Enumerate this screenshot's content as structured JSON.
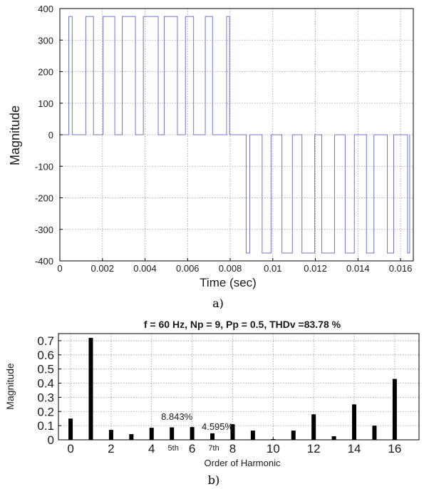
{
  "chart_data": [
    {
      "type": "line",
      "panel_label": "a)",
      "title": "",
      "xlabel": "Time (sec)",
      "ylabel": "Magnitude",
      "xlim": [
        0,
        0.0166
      ],
      "ylim": [
        -400,
        400
      ],
      "xticks": [
        0,
        0.002,
        0.004,
        0.006,
        0.008,
        0.01,
        0.012,
        0.014,
        0.016
      ],
      "xtick_labels": [
        "0",
        "0.002",
        "0.004",
        "0.006",
        "0.008",
        "0.01",
        "0.012",
        "0.014",
        "0.016"
      ],
      "yticks": [
        -400,
        -300,
        -200,
        -100,
        0,
        100,
        200,
        300,
        400
      ],
      "ytick_labels": [
        "-400",
        "-300",
        "-200",
        "-100",
        "0",
        "100",
        "200",
        "300",
        "400"
      ],
      "grid": true,
      "line_color": "#6f76c4",
      "amplitude": 375,
      "pulses": [
        {
          "start": 0.00042,
          "end": 0.00058,
          "value": 375
        },
        {
          "start": 0.00122,
          "end": 0.00158,
          "value": 375
        },
        {
          "start": 0.00203,
          "end": 0.00258,
          "value": 375
        },
        {
          "start": 0.00293,
          "end": 0.00355,
          "value": 375
        },
        {
          "start": 0.00392,
          "end": 0.00462,
          "value": 375
        },
        {
          "start": 0.0049,
          "end": 0.00552,
          "value": 375
        },
        {
          "start": 0.0059,
          "end": 0.00628,
          "value": 375
        },
        {
          "start": 0.00683,
          "end": 0.00717,
          "value": 375
        },
        {
          "start": 0.00783,
          "end": 0.00797,
          "value": 375
        },
        {
          "start": 0.00875,
          "end": 0.00892,
          "value": -375
        },
        {
          "start": 0.0095,
          "end": 0.00992,
          "value": -375
        },
        {
          "start": 0.01043,
          "end": 0.01092,
          "value": -375
        },
        {
          "start": 0.01137,
          "end": 0.01197,
          "value": -375
        },
        {
          "start": 0.0123,
          "end": 0.0129,
          "value": -375
        },
        {
          "start": 0.0134,
          "end": 0.01383,
          "value": -375
        },
        {
          "start": 0.0144,
          "end": 0.01475,
          "value": -375
        },
        {
          "start": 0.01538,
          "end": 0.01568,
          "value": -375
        },
        {
          "start": 0.01633,
          "end": 0.01643,
          "value": -375
        }
      ]
    },
    {
      "type": "bar",
      "panel_label": "b)",
      "title": "f = 60 Hz, Np = 9, Pp = 0.5, THDv =83.78 %",
      "xlabel": "Order of Harmonic",
      "ylabel": "Magnitude",
      "xlim": [
        -0.6,
        17.2
      ],
      "ylim": [
        0,
        0.75
      ],
      "xticks": [
        0,
        2,
        4,
        6,
        8,
        10,
        12,
        14,
        16
      ],
      "xtick_labels": [
        "0",
        "2",
        "4",
        "6",
        "8",
        "10",
        "12",
        "14",
        "16"
      ],
      "yticks": [
        0,
        0.1,
        0.2,
        0.3,
        0.4,
        0.5,
        0.6,
        0.7
      ],
      "ytick_labels": [
        "0",
        "0.1",
        "0.2",
        "0.3",
        "0.4",
        "0.5",
        "0.6",
        "0.7"
      ],
      "grid": true,
      "bar_color": "#000000",
      "x": [
        0,
        1,
        2,
        3,
        4,
        5,
        6,
        7,
        8,
        9,
        10,
        11,
        12,
        13,
        14,
        15,
        16
      ],
      "values": [
        0.15,
        0.72,
        0.07,
        0.04,
        0.085,
        0.088,
        0.09,
        0.046,
        0.11,
        0.065,
        0.005,
        0.065,
        0.18,
        0.025,
        0.25,
        0.1,
        0.43
      ],
      "annotations": [
        {
          "text": "8.843%",
          "x": 5,
          "y": 0.142
        },
        {
          "text": "5th",
          "x": 5,
          "y": -0.01
        },
        {
          "text": "4.595%",
          "x": 7,
          "y": 0.07
        },
        {
          "text": "7th",
          "x": 7,
          "y": -0.01
        }
      ]
    }
  ]
}
